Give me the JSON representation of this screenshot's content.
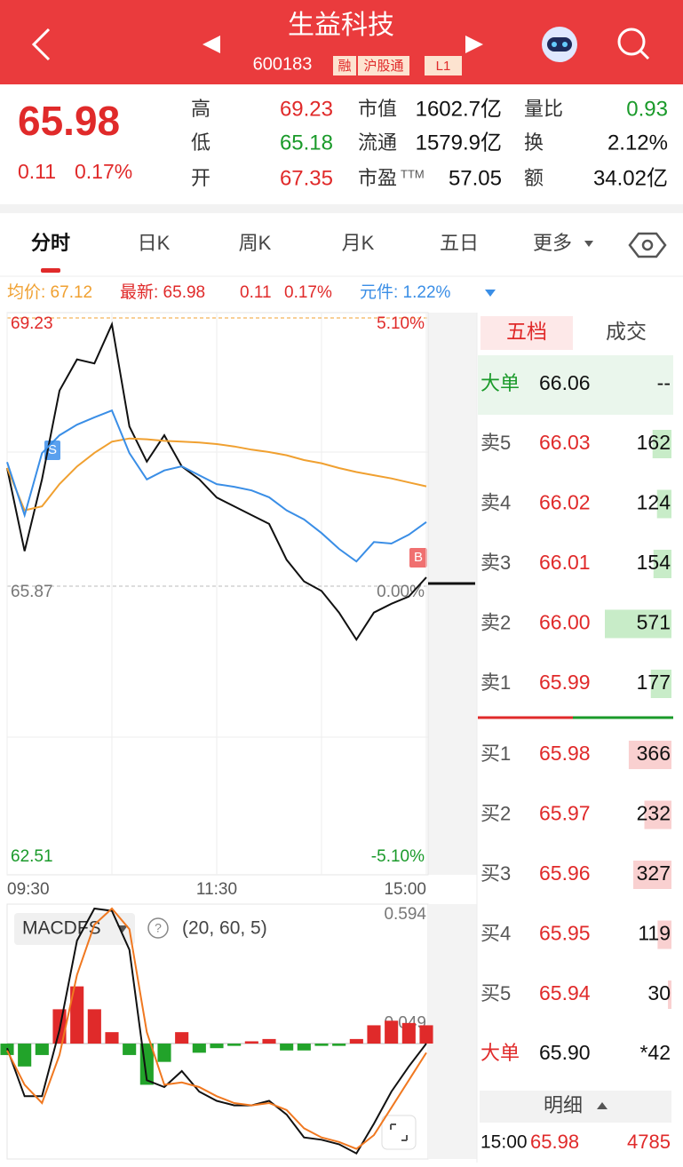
{
  "header": {
    "title": "生益科技",
    "code": "600183",
    "tags": [
      "融",
      "沪股通",
      "L1"
    ]
  },
  "quote": {
    "price": "65.98",
    "change": "0.11",
    "change_pct": "0.17%",
    "stats": [
      {
        "label": "高",
        "value": "69.23",
        "color": "#e02a2a"
      },
      {
        "label": "低",
        "value": "65.18",
        "color": "#1a9a2a"
      },
      {
        "label": "开",
        "value": "67.35",
        "color": "#e02a2a"
      },
      {
        "label": "市值",
        "value": "1602.7亿",
        "color": "#111"
      },
      {
        "label": "流通",
        "value": "1579.9亿",
        "color": "#111"
      },
      {
        "label": "市盈",
        "sup": "TTM",
        "value": "57.05",
        "color": "#111"
      },
      {
        "label": "量比",
        "value": "0.93",
        "color": "#1a9a2a"
      },
      {
        "label": "换",
        "value": "2.12%",
        "color": "#111"
      },
      {
        "label": "额",
        "value": "34.02亿",
        "color": "#111"
      }
    ]
  },
  "tabs": [
    "分时",
    "日K",
    "周K",
    "月K",
    "五日",
    "更多"
  ],
  "legend": {
    "avg": "均价: 67.12",
    "last": "最新: 65.98",
    "change": "0.11",
    "change_pct": "0.17%",
    "sector": "元件: 1.22%"
  },
  "markers": {
    "sell": "S",
    "buy": "B"
  },
  "chart_data": [
    {
      "type": "line",
      "x": [
        0,
        10,
        20,
        30,
        40,
        50,
        60,
        70,
        80,
        90,
        100,
        110,
        120,
        130,
        140,
        150,
        160,
        170,
        180,
        190,
        200,
        210,
        220,
        230,
        240
      ],
      "xlim": [
        0,
        240
      ],
      "xticks": [
        {
          "value": 0,
          "label": "09:30"
        },
        {
          "value": 120,
          "label": "11:30"
        },
        {
          "value": 240,
          "label": "15:00"
        }
      ],
      "ylim": [
        62.51,
        69.23
      ],
      "yticks": [
        62.51,
        65.87,
        69.23
      ],
      "y2lim": [
        -5.1,
        5.1
      ],
      "y2ticks": [
        {
          "value": -5.1,
          "label": "-5.10%"
        },
        {
          "value": 0,
          "label": "0.00%"
        },
        {
          "value": 5.1,
          "label": "5.10%"
        }
      ],
      "series": [
        {
          "color": "#111111",
          "values": [
            67.35,
            66.31,
            67.21,
            68.32,
            68.71,
            68.66,
            69.15,
            67.87,
            67.43,
            67.76,
            67.37,
            67.21,
            66.98,
            66.87,
            66.76,
            66.65,
            66.2,
            65.93,
            65.81,
            65.54,
            65.2,
            65.54,
            65.65,
            65.74,
            65.98
          ]
        },
        {
          "color": "#f0a030",
          "values": [
            67.35,
            66.82,
            66.87,
            67.15,
            67.37,
            67.54,
            67.68,
            67.72,
            67.71,
            67.69,
            67.68,
            67.67,
            67.65,
            67.62,
            67.58,
            67.55,
            67.51,
            67.45,
            67.41,
            67.35,
            67.3,
            67.26,
            67.22,
            67.17,
            67.12
          ]
        },
        {
          "color": "#3a8ee6",
          "axis": "y2",
          "values": [
            2.36,
            1.35,
            2.53,
            2.87,
            3.07,
            3.21,
            3.34,
            2.53,
            2.03,
            2.2,
            2.28,
            2.11,
            1.94,
            1.89,
            1.82,
            1.69,
            1.44,
            1.27,
            1.01,
            0.71,
            0.47,
            0.84,
            0.81,
            0.98,
            1.22
          ]
        }
      ]
    },
    {
      "type": "macd",
      "title": "MACDFS",
      "params": "(20, 60, 5)",
      "x": [
        0,
        10,
        20,
        30,
        40,
        50,
        60,
        70,
        80,
        90,
        100,
        110,
        120,
        130,
        140,
        150,
        160,
        170,
        180,
        190,
        200,
        210,
        220,
        230,
        240
      ],
      "xlim": [
        0,
        240
      ],
      "ylim": [
        -0.485,
        0.594
      ],
      "yticks": [
        0.049,
        0.594
      ],
      "series": [
        {
          "color": "#111111",
          "values": [
            -0.02,
            -0.23,
            -0.23,
            0.06,
            0.45,
            0.59,
            0.58,
            0.41,
            -0.16,
            -0.19,
            -0.12,
            -0.21,
            -0.25,
            -0.27,
            -0.27,
            -0.25,
            -0.31,
            -0.41,
            -0.42,
            -0.44,
            -0.48,
            -0.35,
            -0.21,
            -0.1,
            0
          ]
        },
        {
          "color": "#f07820",
          "values": [
            -0.03,
            -0.18,
            -0.26,
            -0.05,
            0.3,
            0.52,
            0.59,
            0.5,
            0.05,
            -0.18,
            -0.17,
            -0.19,
            -0.23,
            -0.26,
            -0.27,
            -0.26,
            -0.29,
            -0.37,
            -0.41,
            -0.43,
            -0.46,
            -0.4,
            -0.28,
            -0.16,
            -0.04
          ]
        }
      ],
      "bars": [
        -0.05,
        -0.1,
        -0.05,
        0.15,
        0.25,
        0.15,
        0.05,
        -0.05,
        -0.18,
        -0.08,
        0.05,
        -0.04,
        -0.02,
        -0.01,
        0.01,
        0.02,
        -0.03,
        -0.03,
        -0.01,
        -0.01,
        0.02,
        0.08,
        0.1,
        0.09,
        0.08
      ]
    }
  ],
  "order_book": {
    "tabs": [
      "五档",
      "成交"
    ],
    "big_sell": {
      "label": "大单",
      "price": "66.06",
      "volume": "--"
    },
    "asks": [
      {
        "label": "卖5",
        "price": "66.03",
        "volume": 162
      },
      {
        "label": "卖4",
        "price": "66.02",
        "volume": 124
      },
      {
        "label": "卖3",
        "price": "66.01",
        "volume": 154
      },
      {
        "label": "卖2",
        "price": "66.00",
        "volume": 571
      },
      {
        "label": "卖1",
        "price": "65.99",
        "volume": 177
      }
    ],
    "bids": [
      {
        "label": "买1",
        "price": "65.98",
        "volume": 366
      },
      {
        "label": "买2",
        "price": "65.97",
        "volume": 232
      },
      {
        "label": "买3",
        "price": "65.96",
        "volume": 327
      },
      {
        "label": "买4",
        "price": "65.95",
        "volume": 119
      },
      {
        "label": "买5",
        "price": "65.94",
        "volume": 30
      }
    ],
    "big_buy": {
      "label": "大单",
      "price": "65.90",
      "volume": "*42"
    },
    "detail": "明细",
    "last_trade": {
      "time": "15:00",
      "price": "65.98",
      "volume": "4785"
    }
  }
}
